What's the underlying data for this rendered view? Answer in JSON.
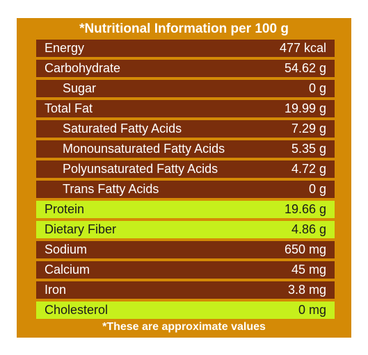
{
  "title": "*Nutritional Information per 100 g",
  "footer": "*These are approximate values",
  "colors": {
    "background": "#d48a06",
    "row": "#7a2e0c",
    "highlight": "#c6f01c"
  },
  "rows": [
    {
      "label": "Energy",
      "value": "477 kcal",
      "sub": false,
      "highlight": false
    },
    {
      "label": "Carbohydrate",
      "value": "54.62 g",
      "sub": false,
      "highlight": false
    },
    {
      "label": "Sugar",
      "value": "0 g",
      "sub": true,
      "highlight": false
    },
    {
      "label": "Total Fat",
      "value": "19.99 g",
      "sub": false,
      "highlight": false
    },
    {
      "label": "Saturated Fatty Acids",
      "value": "7.29 g",
      "sub": true,
      "highlight": false
    },
    {
      "label": "Monounsaturated Fatty Acids",
      "value": "5.35 g",
      "sub": true,
      "highlight": false
    },
    {
      "label": "Polyunsaturated Fatty Acids",
      "value": "4.72 g",
      "sub": true,
      "highlight": false
    },
    {
      "label": "Trans Fatty Acids",
      "value": "0 g",
      "sub": true,
      "highlight": false
    },
    {
      "label": "Protein",
      "value": "19.66 g",
      "sub": false,
      "highlight": true
    },
    {
      "label": "Dietary Fiber",
      "value": "4.86 g",
      "sub": false,
      "highlight": true
    },
    {
      "label": "Sodium",
      "value": "650 mg",
      "sub": false,
      "highlight": false
    },
    {
      "label": "Calcium",
      "value": "45 mg",
      "sub": false,
      "highlight": false
    },
    {
      "label": "Iron",
      "value": "3.8 mg",
      "sub": false,
      "highlight": false
    },
    {
      "label": "Cholesterol",
      "value": "0 mg",
      "sub": false,
      "highlight": true
    }
  ]
}
